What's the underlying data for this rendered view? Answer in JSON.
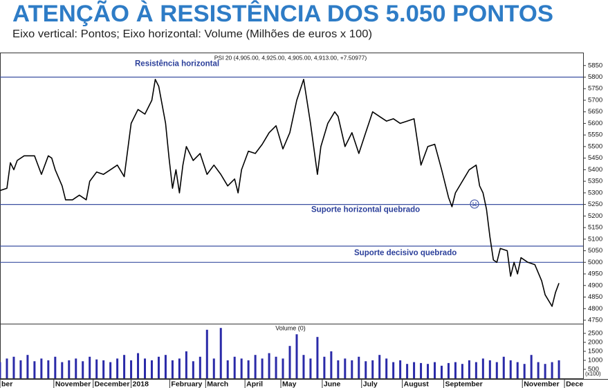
{
  "header": {
    "title": "ATENÇÃO À RESISTÊNCIA DOS 5.050 PONTOS",
    "subtitle": "Eixo vertical: Pontos; Eixo horizontal: Volume (Milhões de euros x 100)"
  },
  "chart_data": [
    {
      "type": "line",
      "title": "PSI 20 (4,905.00, 4,925.00, 4,905.00, 4,913.00, +7.50977)",
      "color": "#000000",
      "xlim": [
        0,
        169
      ],
      "ylim": [
        4735,
        5900
      ],
      "yticks": [
        4750,
        4800,
        4850,
        4900,
        4950,
        5000,
        5050,
        5100,
        5150,
        5200,
        5250,
        5300,
        5350,
        5400,
        5450,
        5500,
        5550,
        5600,
        5650,
        5700,
        5750,
        5800,
        5850
      ],
      "x": [
        0,
        2,
        3,
        4,
        5,
        7,
        10,
        12,
        14,
        15,
        16,
        18,
        19,
        21,
        23,
        25,
        26,
        28,
        30,
        32,
        34,
        36,
        38,
        40,
        42,
        44,
        45,
        46,
        48,
        49,
        50,
        51,
        52,
        53,
        54,
        56,
        58,
        60,
        62,
        64,
        66,
        68,
        69,
        70,
        72,
        74,
        76,
        78,
        80,
        82,
        84,
        86,
        88,
        90,
        92,
        93,
        95,
        97,
        98,
        100,
        102,
        104,
        106,
        108,
        110,
        112,
        114,
        116,
        118,
        120,
        121,
        122,
        124,
        126,
        128,
        130,
        131,
        132,
        134,
        136,
        138,
        139,
        140,
        141,
        142,
        143,
        144,
        145,
        147,
        148,
        149,
        150,
        151,
        153,
        155,
        157,
        158,
        160,
        161,
        162
      ],
      "values": [
        5310,
        5320,
        5430,
        5400,
        5440,
        5460,
        5460,
        5380,
        5460,
        5450,
        5400,
        5330,
        5270,
        5270,
        5290,
        5270,
        5350,
        5390,
        5380,
        5400,
        5420,
        5370,
        5600,
        5660,
        5640,
        5700,
        5790,
        5760,
        5600,
        5450,
        5320,
        5400,
        5300,
        5420,
        5500,
        5440,
        5470,
        5380,
        5420,
        5380,
        5330,
        5360,
        5300,
        5400,
        5480,
        5470,
        5510,
        5560,
        5590,
        5490,
        5560,
        5700,
        5790,
        5600,
        5380,
        5500,
        5600,
        5650,
        5630,
        5500,
        5560,
        5470,
        5560,
        5650,
        5630,
        5610,
        5620,
        5600,
        5610,
        5620,
        5520,
        5420,
        5500,
        5510,
        5400,
        5280,
        5240,
        5300,
        5350,
        5400,
        5420,
        5330,
        5300,
        5230,
        5110,
        5010,
        5000,
        5060,
        5050,
        4940,
        5000,
        4950,
        5020,
        5000,
        4990,
        4920,
        4860,
        4810,
        4870,
        4910
      ],
      "annotations": [
        {
          "value": 5800,
          "label": "Resistência horizontal"
        },
        {
          "value": 5250,
          "label": "Suporte horizontal quebrado"
        },
        {
          "value": 5070,
          "label": "Suporte decisivo quebrado"
        },
        {
          "value": 5000
        }
      ],
      "annotation_color": "#3a4fa0"
    },
    {
      "type": "bar",
      "title": "Volume (0)",
      "color": "#2a2aa8",
      "unit_label": "(x100)",
      "xlim": [
        0,
        169
      ],
      "ylim": [
        0,
        3000
      ],
      "yticks": [
        500,
        1000,
        1500,
        2000,
        2500
      ],
      "x": [
        0,
        2,
        4,
        6,
        8,
        10,
        12,
        14,
        16,
        18,
        20,
        22,
        24,
        26,
        28,
        30,
        32,
        34,
        36,
        38,
        40,
        42,
        44,
        46,
        48,
        50,
        52,
        54,
        56,
        58,
        60,
        62,
        64,
        66,
        68,
        70,
        72,
        74,
        76,
        78,
        80,
        82,
        84,
        86,
        88,
        90,
        92,
        94,
        96,
        98,
        100,
        102,
        104,
        106,
        108,
        110,
        112,
        114,
        116,
        118,
        120,
        122,
        124,
        126,
        128,
        130,
        132,
        134,
        136,
        138,
        140,
        142,
        144,
        146,
        148,
        150,
        152,
        154,
        156,
        158,
        160,
        162
      ],
      "values": [
        900,
        1100,
        1200,
        1000,
        1300,
        950,
        1100,
        1000,
        1200,
        900,
        1000,
        1100,
        950,
        1200,
        1050,
        1000,
        900,
        1100,
        1300,
        1000,
        1400,
        1100,
        1000,
        1200,
        1300,
        1000,
        1100,
        1500,
        950,
        1200,
        2700,
        1100,
        2800,
        1000,
        1200,
        1100,
        1000,
        1300,
        1100,
        1400,
        1200,
        1100,
        1800,
        2450,
        1300,
        1100,
        2300,
        1200,
        1500,
        1000,
        1100,
        1000,
        1200,
        950,
        1000,
        1300,
        1100,
        900,
        1000,
        800,
        900,
        850,
        800,
        900,
        700,
        850,
        900,
        800,
        1000,
        900,
        1100,
        1000,
        900,
        1200,
        1000,
        900,
        800,
        1300,
        900,
        800,
        900,
        1000
      ],
      "xticks": [
        {
          "value": 0,
          "label": "ber"
        },
        {
          "value": 15.6,
          "label": "November"
        },
        {
          "value": 27,
          "label": "December"
        },
        {
          "value": 38,
          "label": "2018"
        },
        {
          "value": 49.2,
          "label": "February"
        },
        {
          "value": 59.6,
          "label": "March"
        },
        {
          "value": 71,
          "label": "April"
        },
        {
          "value": 81.4,
          "label": "May"
        },
        {
          "value": 93.4,
          "label": "June"
        },
        {
          "value": 104.8,
          "label": "July"
        },
        {
          "value": 116.6,
          "label": "August"
        },
        {
          "value": 128.6,
          "label": "September"
        },
        {
          "value": 151.4,
          "label": "November"
        },
        {
          "value": 163.6,
          "label": "Dece"
        }
      ]
    }
  ]
}
